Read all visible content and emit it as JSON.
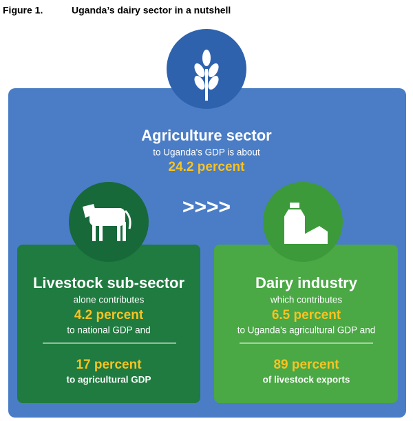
{
  "header": {
    "label": "Figure 1.",
    "title": "Uganda’s dairy sector in a nutshell"
  },
  "agriculture": {
    "title": "Agriculture sector",
    "line1": "to Uganda's GDP is about",
    "value": "24.2 percent"
  },
  "arrow": ">>>>",
  "livestock": {
    "title": "Livestock sub-sector",
    "line1": "alone contributes",
    "value1": "4.2 percent",
    "line2": "to national GDP and",
    "value2": "17 percent",
    "line3": "to agricultural GDP"
  },
  "dairy": {
    "title": "Dairy industry",
    "line1": "which contributes",
    "value1": "6.5 percent",
    "line2": "to Uganda's agricultural GDP and",
    "value2": "89 percent",
    "line3": "of livestock exports"
  }
}
